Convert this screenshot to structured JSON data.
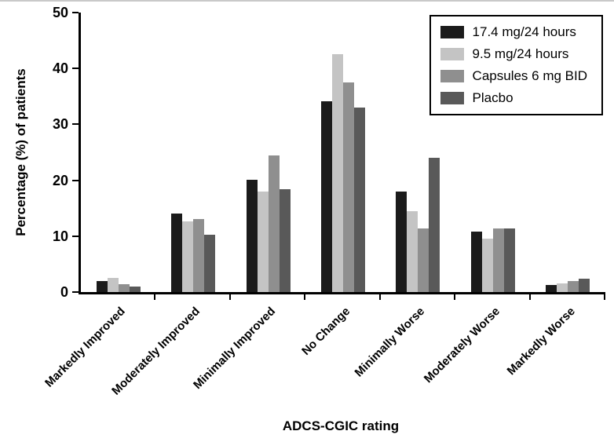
{
  "chart_data": {
    "type": "bar",
    "title": "",
    "xlabel": "ADCS-CGIC rating",
    "ylabel": "Percentage (%) of patients",
    "ylim": [
      0,
      50
    ],
    "yticks": [
      0,
      10,
      20,
      30,
      40,
      50
    ],
    "grid": false,
    "legend_position": "upper right",
    "categories": [
      "Markedly Improved",
      "Moderately Improved",
      "Minimally Improved",
      "No Change",
      "Minimally Worse",
      "Moderately Worse",
      "Markedly Worse"
    ],
    "series": [
      {
        "name": "17.4 mg/24 hours",
        "color": "#1b1b1b",
        "values": [
          2.0,
          14.0,
          20.1,
          34.2,
          18.0,
          10.8,
          1.2
        ]
      },
      {
        "name": "9.5 mg/24 hours",
        "color": "#c4c4c4",
        "values": [
          2.5,
          12.7,
          18.0,
          42.5,
          14.4,
          9.5,
          1.5
        ]
      },
      {
        "name": "Capsules 6 mg BID",
        "color": "#8f8f8f",
        "values": [
          1.4,
          13.0,
          24.5,
          37.5,
          11.4,
          11.4,
          2.0
        ]
      },
      {
        "name": "Placbo",
        "color": "#595959",
        "values": [
          1.0,
          10.2,
          18.4,
          33.0,
          24.0,
          11.4,
          2.4
        ]
      }
    ]
  }
}
